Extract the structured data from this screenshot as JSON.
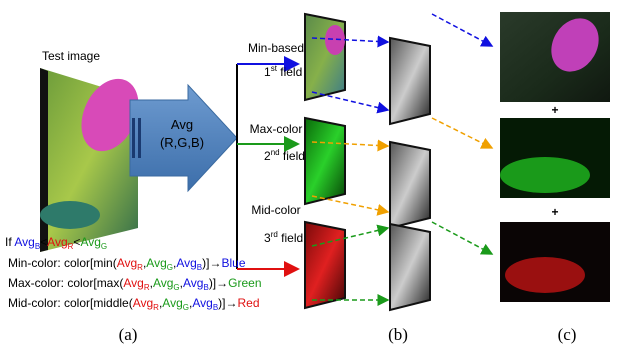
{
  "test_image_label": "Test image",
  "avg_box": {
    "line1": "Avg",
    "line2": "(R,G,B)"
  },
  "fields": [
    {
      "method": "Min-based",
      "ordinal": "1",
      "suffix": "st",
      "field": " field"
    },
    {
      "method": "Max-color",
      "ordinal": "2",
      "suffix": "nd",
      "field": " field"
    },
    {
      "method": "Mid-color",
      "ordinal": "3",
      "suffix": "rd",
      "field": " field"
    }
  ],
  "condition": [
    "If ",
    "Avg",
    "B",
    "<",
    "Avg",
    "R",
    "<",
    "Avg",
    "G"
  ],
  "rules": [
    [
      "Min-color: color[min(",
      "Avg",
      "R",
      ",",
      "Avg",
      "G",
      ",",
      "Avg",
      "B",
      ")]",
      "→",
      "Blue"
    ],
    [
      "Max-color: color[max(",
      "Avg",
      "R",
      ",",
      "Avg",
      "G",
      ",",
      "Avg",
      "B",
      ")]",
      "→",
      "Green"
    ],
    [
      "Mid-color: color[middle(",
      "Avg",
      "R",
      ",",
      "Avg",
      "G",
      ",",
      "Avg",
      "B",
      ")]",
      "→",
      "Red"
    ]
  ],
  "plus_signs": [
    "+",
    "+"
  ],
  "captions": [
    "(a)",
    "(b)",
    "(c)"
  ]
}
